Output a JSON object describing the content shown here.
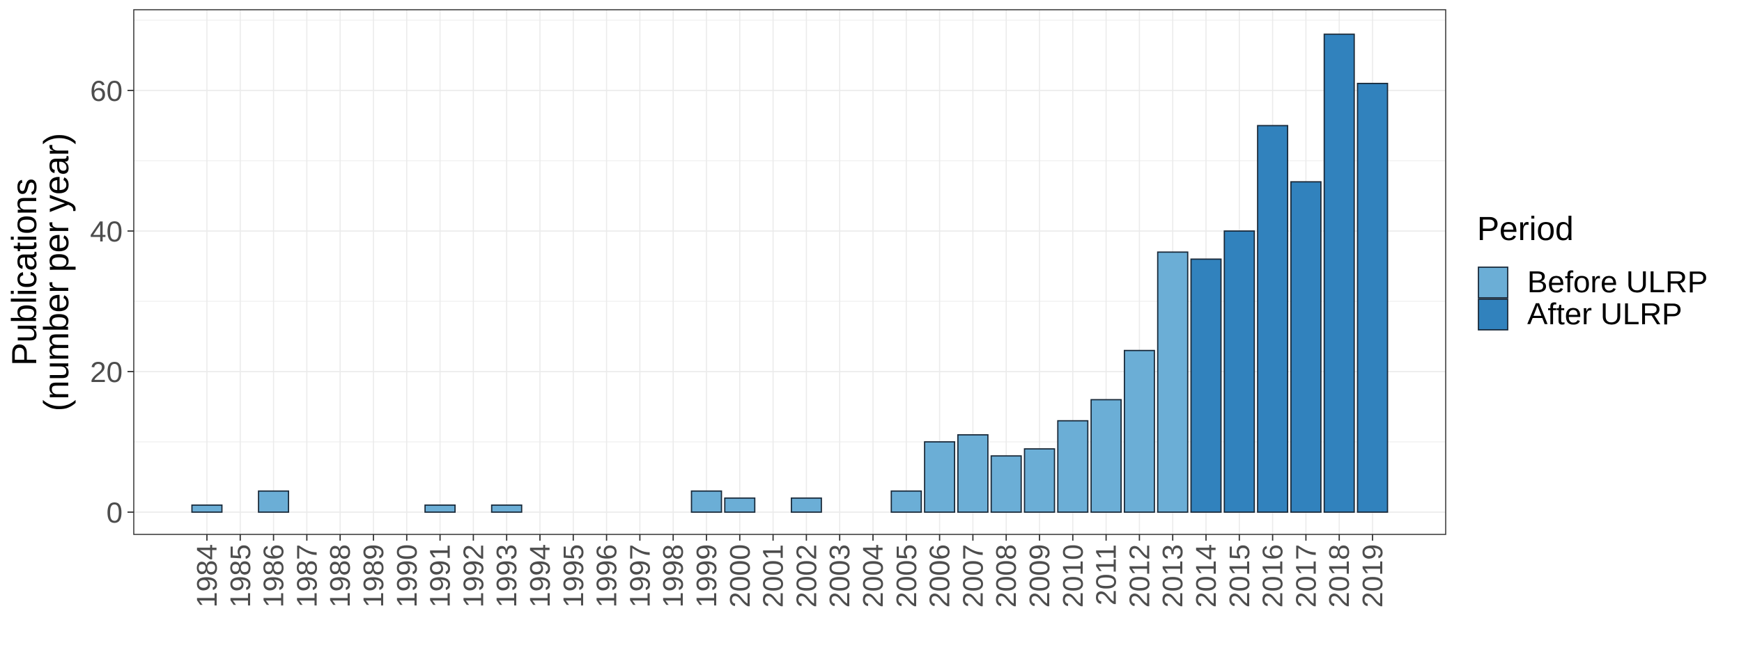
{
  "chart_data": {
    "type": "bar",
    "ylabel": [
      "Publications",
      "(number per year)"
    ],
    "xlabel": "",
    "ylim": [
      0,
      70
    ],
    "yticks": [
      0,
      20,
      40,
      60
    ],
    "grid": true,
    "legend": {
      "title": "Period",
      "placement": "right",
      "entries": [
        {
          "label": "Before ULRP",
          "color": "#6baed6"
        },
        {
          "label": "After ULRP",
          "color": "#3182bd"
        }
      ]
    },
    "categories": [
      "1984",
      "1985",
      "1986",
      "1987",
      "1988",
      "1989",
      "1990",
      "1991",
      "1992",
      "1993",
      "1994",
      "1995",
      "1996",
      "1997",
      "1998",
      "1999",
      "2000",
      "2001",
      "2002",
      "2003",
      "2004",
      "2005",
      "2006",
      "2007",
      "2008",
      "2009",
      "2010",
      "2011",
      "2012",
      "2013",
      "2014",
      "2015",
      "2016",
      "2017",
      "2018",
      "2019"
    ],
    "values": [
      1,
      0,
      3,
      0,
      0,
      0,
      0,
      1,
      0,
      1,
      0,
      0,
      0,
      0,
      0,
      3,
      2,
      0,
      2,
      0,
      0,
      3,
      10,
      11,
      8,
      9,
      13,
      16,
      23,
      37,
      36,
      40,
      55,
      47,
      68,
      61
    ],
    "period": [
      "Before ULRP",
      "Before ULRP",
      "Before ULRP",
      "Before ULRP",
      "Before ULRP",
      "Before ULRP",
      "Before ULRP",
      "Before ULRP",
      "Before ULRP",
      "Before ULRP",
      "Before ULRP",
      "Before ULRP",
      "Before ULRP",
      "Before ULRP",
      "Before ULRP",
      "Before ULRP",
      "Before ULRP",
      "Before ULRP",
      "Before ULRP",
      "Before ULRP",
      "Before ULRP",
      "Before ULRP",
      "Before ULRP",
      "Before ULRP",
      "Before ULRP",
      "Before ULRP",
      "Before ULRP",
      "Before ULRP",
      "Before ULRP",
      "Before ULRP",
      "After ULRP",
      "After ULRP",
      "After ULRP",
      "After ULRP",
      "After ULRP",
      "After ULRP"
    ],
    "colors": {
      "border": "#1a2a3a",
      "panel_border": "#333333",
      "grid": "#ebebeb"
    }
  }
}
